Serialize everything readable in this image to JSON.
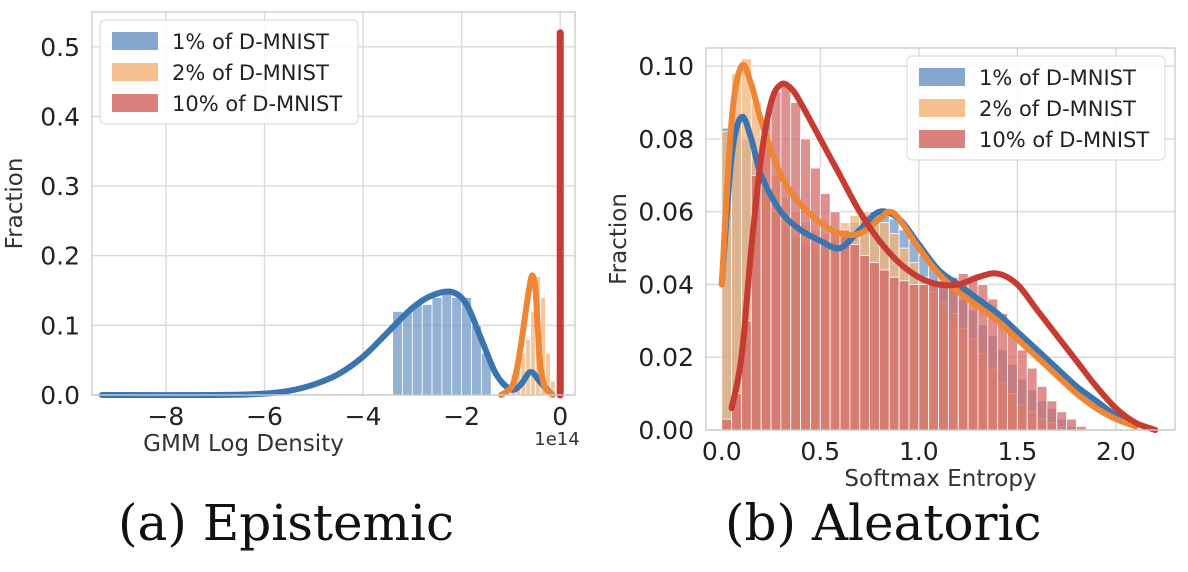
{
  "captions": {
    "a": "(a) Epistemic",
    "b": "(b) Aleatoric"
  },
  "colors": {
    "blue": "#3b75af",
    "orange": "#ef8636",
    "red": "#c63b32",
    "blue_fill": "#6f98c6",
    "orange_fill": "#f3b47c",
    "red_fill": "#d46b67"
  },
  "chart_data": [
    {
      "type": "bar",
      "xlabel": "GMM Log Density",
      "ylabel": "Fraction",
      "x_offset_label": "1e14",
      "xlim": [
        -9.5,
        0.3
      ],
      "ylim": [
        0,
        0.55
      ],
      "xticks": [
        -8,
        -6,
        -4,
        -2,
        0
      ],
      "yticks": [
        0.0,
        0.1,
        0.2,
        0.3,
        0.4,
        0.5
      ],
      "ytick_labels": [
        "0.0",
        "0.1",
        "0.2",
        "0.3",
        "0.4",
        "0.5"
      ],
      "xtick_labels": [
        "−8",
        "−6",
        "−4",
        "−2",
        "0"
      ],
      "grid": true,
      "legend_position": "upper-left",
      "series": [
        {
          "name": "1% of D-MNIST",
          "color": "blue",
          "hist_start": -3.4,
          "bin_width": 0.2,
          "hist": [
            0.12,
            0.12,
            0.13,
            0.13,
            0.14,
            0.15,
            0.14,
            0.14,
            0.1,
            0.06
          ],
          "kde_x": [
            -9.3,
            -7.0,
            -6.0,
            -5.5,
            -5.0,
            -4.5,
            -4.0,
            -3.5,
            -3.0,
            -2.6,
            -2.2,
            -1.9,
            -1.6,
            -1.3,
            -1.0,
            -0.8,
            -0.6,
            -0.4,
            -0.2
          ],
          "kde_y": [
            0.0,
            0.0,
            0.002,
            0.006,
            0.015,
            0.03,
            0.055,
            0.09,
            0.125,
            0.143,
            0.148,
            0.13,
            0.08,
            0.03,
            0.008,
            0.015,
            0.033,
            0.018,
            0.003
          ]
        },
        {
          "name": "2% of D-MNIST",
          "color": "orange",
          "hist_start": -1.0,
          "bin_width": 0.1,
          "hist": [
            0.03,
            0.045,
            0.06,
            0.08,
            0.12,
            0.17,
            0.14,
            0.06,
            0.02
          ],
          "kde_x": [
            -1.2,
            -1.0,
            -0.9,
            -0.8,
            -0.7,
            -0.6,
            -0.55,
            -0.5,
            -0.45,
            -0.4,
            -0.3,
            -0.15
          ],
          "kde_y": [
            0.0,
            0.01,
            0.03,
            0.07,
            0.12,
            0.165,
            0.17,
            0.15,
            0.09,
            0.04,
            0.01,
            0.0
          ]
        },
        {
          "name": "10% of D-MNIST",
          "color": "red",
          "spike_x": 0.0,
          "spike_y": 0.52
        }
      ]
    },
    {
      "type": "bar",
      "xlabel": "Softmax Entropy",
      "ylabel": "Fraction",
      "xlim": [
        -0.08,
        2.3
      ],
      "ylim": [
        0,
        0.105
      ],
      "xticks": [
        0.0,
        0.5,
        1.0,
        1.5,
        2.0
      ],
      "xtick_labels": [
        "0.0",
        "0.5",
        "1.0",
        "1.5",
        "2.0"
      ],
      "yticks": [
        0.0,
        0.02,
        0.04,
        0.06,
        0.08,
        0.1
      ],
      "ytick_labels": [
        "0.00",
        "0.02",
        "0.04",
        "0.06",
        "0.08",
        "0.10"
      ],
      "grid": true,
      "legend_position": "upper-right",
      "series": [
        {
          "name": "1% of D-MNIST",
          "color": "blue",
          "hist_start": 0.0,
          "bin_width": 0.05,
          "hist": [
            0.083,
            0.086,
            0.08,
            0.074,
            0.066,
            0.06,
            0.056,
            0.053,
            0.051,
            0.05,
            0.051,
            0.052,
            0.054,
            0.057,
            0.059,
            0.06,
            0.06,
            0.058,
            0.055,
            0.052,
            0.048,
            0.045,
            0.042,
            0.039,
            0.036,
            0.033,
            0.029,
            0.026,
            0.022,
            0.018,
            0.014,
            0.011,
            0.008,
            0.006,
            0.003,
            0.001
          ],
          "kde_x": [
            0.0,
            0.05,
            0.1,
            0.15,
            0.2,
            0.3,
            0.4,
            0.5,
            0.6,
            0.7,
            0.8,
            0.9,
            1.0,
            1.1,
            1.2,
            1.3,
            1.4,
            1.5,
            1.6,
            1.7,
            1.8,
            1.9,
            2.0,
            2.1
          ],
          "kde_y": [
            0.04,
            0.075,
            0.086,
            0.08,
            0.07,
            0.06,
            0.055,
            0.052,
            0.05,
            0.055,
            0.06,
            0.058,
            0.051,
            0.044,
            0.04,
            0.036,
            0.032,
            0.027,
            0.022,
            0.017,
            0.012,
            0.008,
            0.004,
            0.001
          ]
        },
        {
          "name": "2% of D-MNIST",
          "color": "orange",
          "hist_start": 0.0,
          "bin_width": 0.05,
          "hist": [
            0.082,
            0.098,
            0.102,
            0.09,
            0.078,
            0.07,
            0.064,
            0.06,
            0.057,
            0.055,
            0.054,
            0.055,
            0.057,
            0.059,
            0.06,
            0.059,
            0.057,
            0.054,
            0.05,
            0.046,
            0.042,
            0.038,
            0.035,
            0.032,
            0.028,
            0.025,
            0.021,
            0.017,
            0.013,
            0.01,
            0.007,
            0.005,
            0.003,
            0.002,
            0.001,
            0.0
          ],
          "kde_x": [
            0.0,
            0.05,
            0.1,
            0.15,
            0.2,
            0.3,
            0.4,
            0.5,
            0.6,
            0.7,
            0.8,
            0.85,
            0.9,
            1.0,
            1.1,
            1.2,
            1.3,
            1.4,
            1.5,
            1.6,
            1.7,
            1.8,
            1.9,
            2.0,
            2.1
          ],
          "kde_y": [
            0.04,
            0.085,
            0.1,
            0.095,
            0.085,
            0.07,
            0.062,
            0.057,
            0.054,
            0.054,
            0.058,
            0.06,
            0.058,
            0.05,
            0.043,
            0.038,
            0.034,
            0.03,
            0.025,
            0.02,
            0.015,
            0.01,
            0.006,
            0.003,
            0.001
          ]
        },
        {
          "name": "10% of D-MNIST",
          "color": "red",
          "hist_start": 0.0,
          "bin_width": 0.05,
          "hist": [
            0.003,
            0.01,
            0.03,
            0.07,
            0.085,
            0.093,
            0.095,
            0.09,
            0.08,
            0.072,
            0.065,
            0.06,
            0.055,
            0.051,
            0.048,
            0.046,
            0.044,
            0.042,
            0.041,
            0.04,
            0.04,
            0.04,
            0.041,
            0.042,
            0.043,
            0.042,
            0.04,
            0.036,
            0.032,
            0.027,
            0.022,
            0.017,
            0.012,
            0.008,
            0.005,
            0.003,
            0.001,
            0.0
          ],
          "kde_x": [
            0.05,
            0.1,
            0.15,
            0.2,
            0.25,
            0.3,
            0.35,
            0.4,
            0.5,
            0.6,
            0.7,
            0.8,
            0.9,
            1.0,
            1.1,
            1.2,
            1.3,
            1.4,
            1.5,
            1.6,
            1.7,
            1.8,
            1.9,
            2.0,
            2.1,
            2.2
          ],
          "kde_y": [
            0.006,
            0.02,
            0.05,
            0.075,
            0.09,
            0.095,
            0.094,
            0.09,
            0.08,
            0.07,
            0.06,
            0.052,
            0.046,
            0.042,
            0.04,
            0.04,
            0.042,
            0.043,
            0.04,
            0.033,
            0.026,
            0.019,
            0.012,
            0.006,
            0.002,
            0.0
          ]
        }
      ]
    }
  ]
}
